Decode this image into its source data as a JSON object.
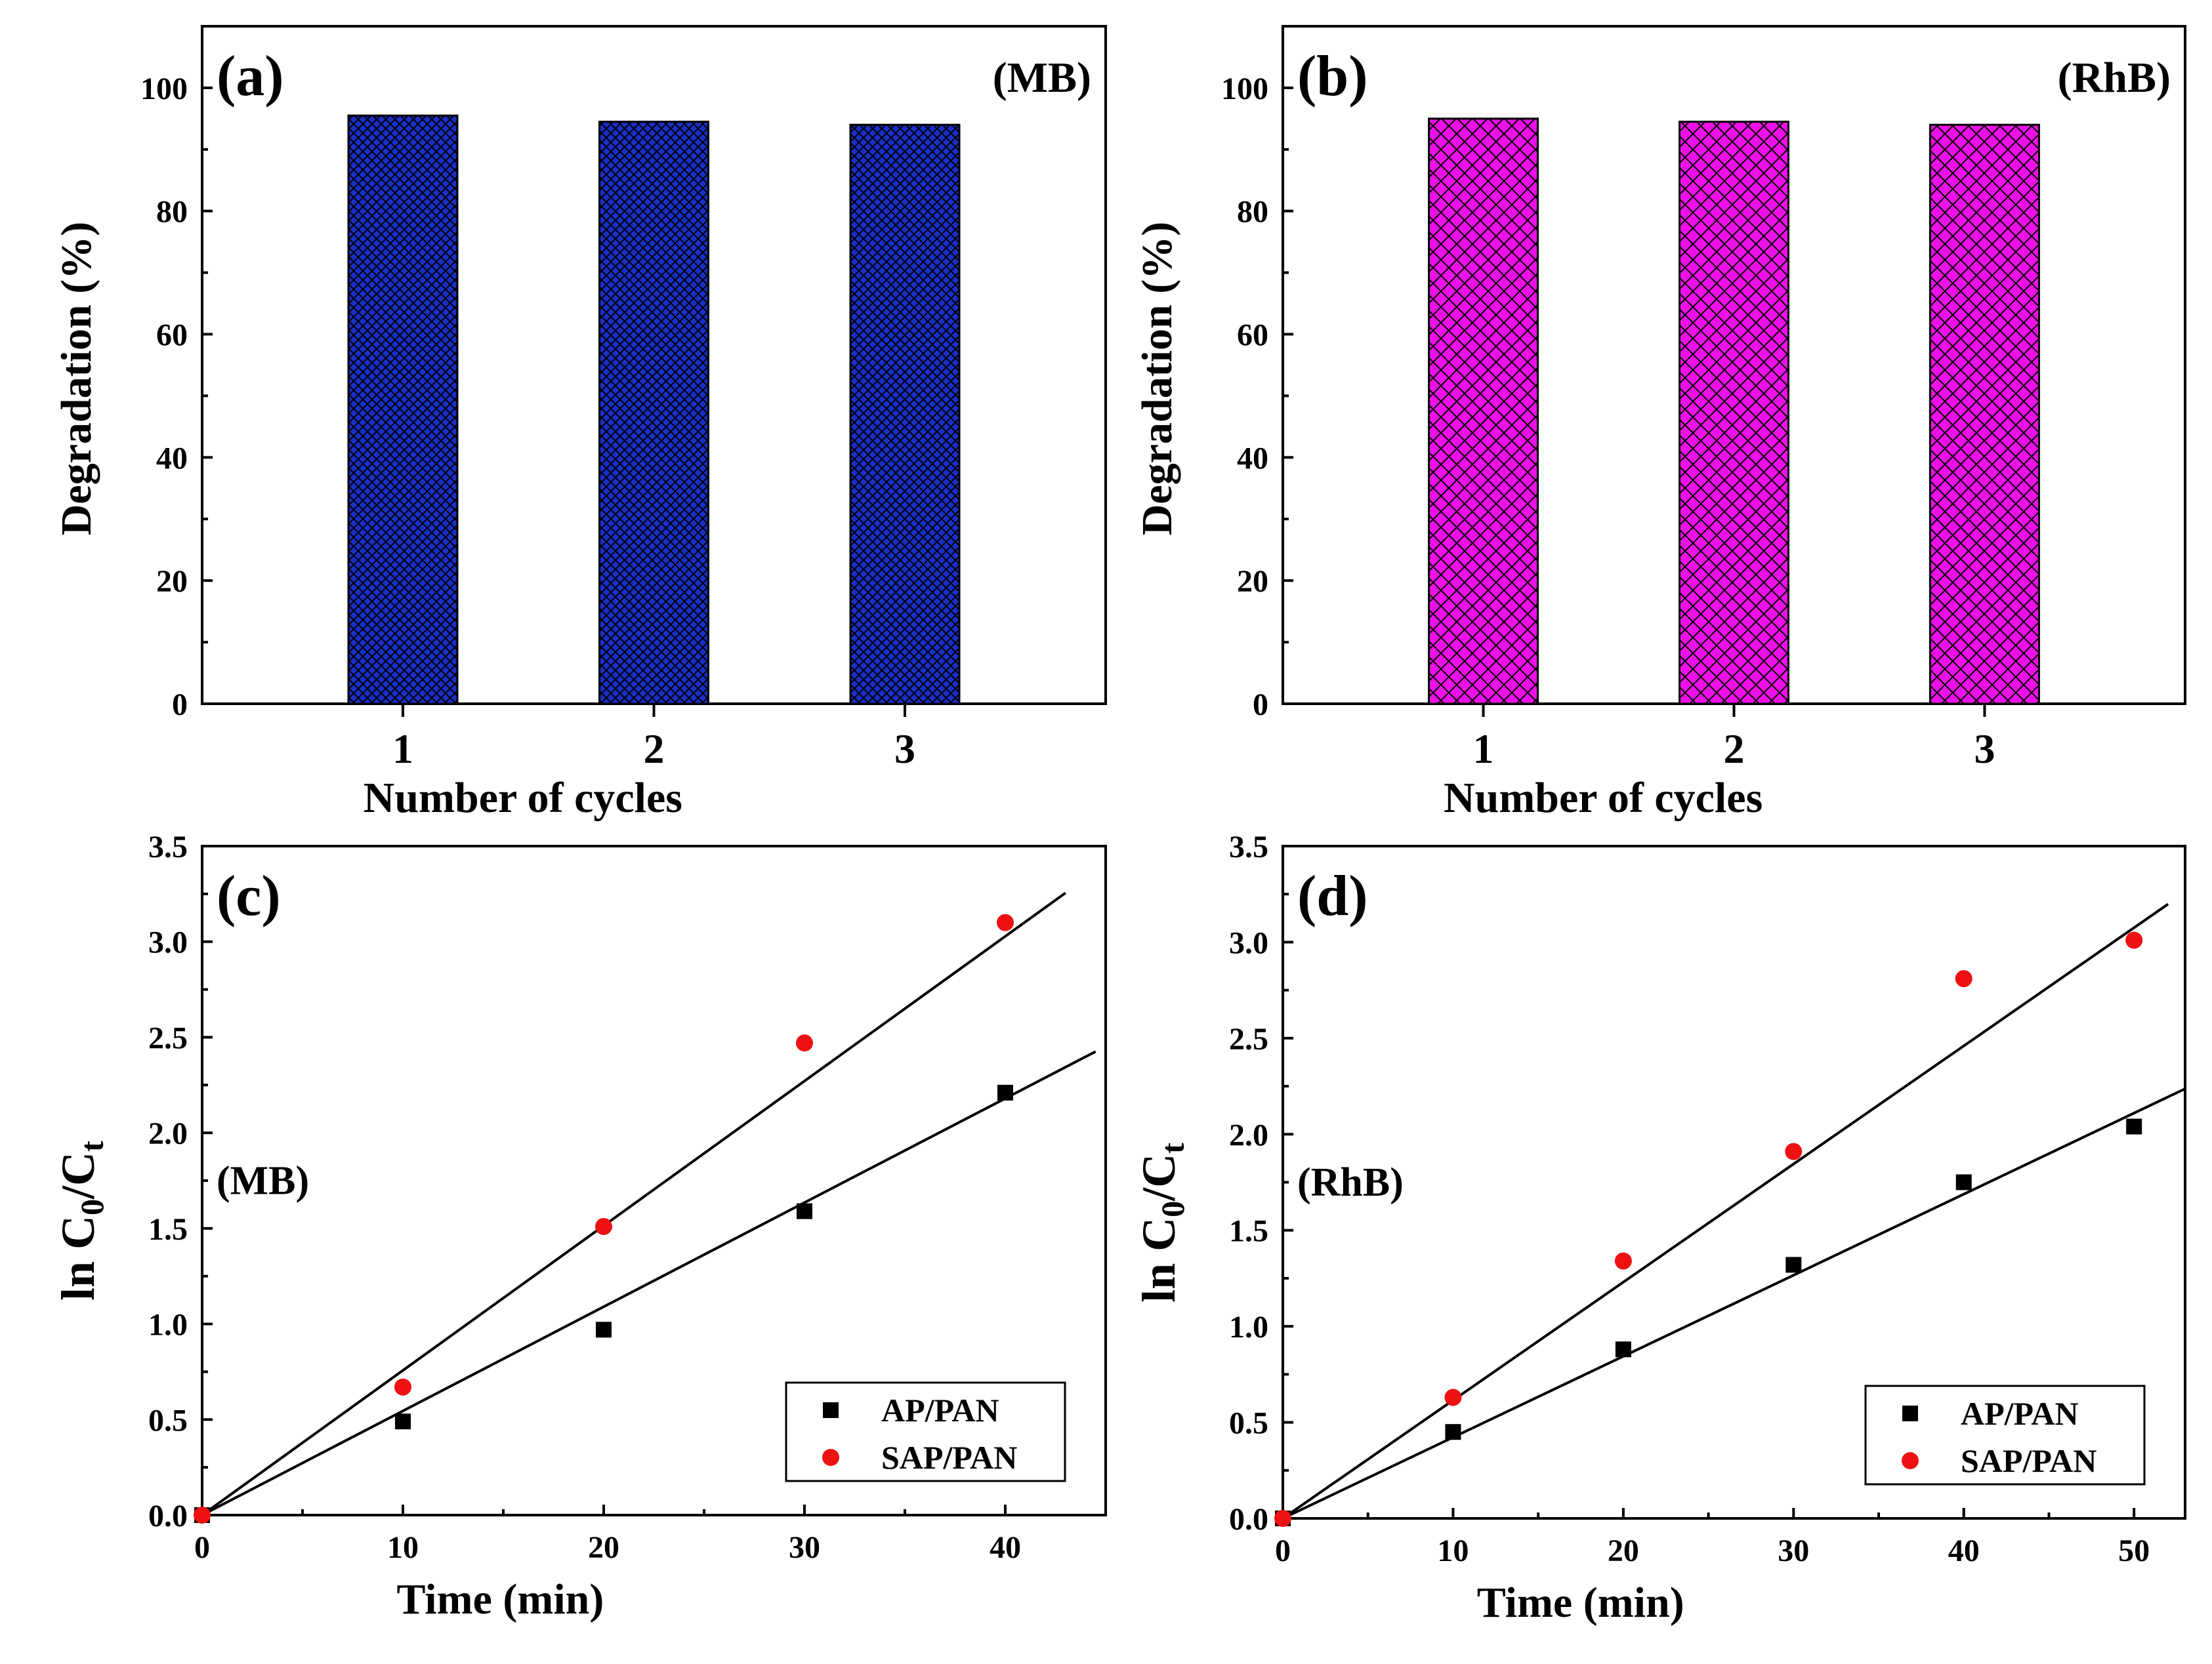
{
  "chart_data": [
    {
      "id": "a",
      "type": "bar",
      "panel_label": "(a)",
      "tag": "(MB)",
      "categories": [
        "1",
        "2",
        "3"
      ],
      "values": [
        95.5,
        94.5,
        94.0
      ],
      "xlabel": "Number of cycles",
      "ylabel": "Degradation (%)",
      "ylim": [
        0,
        110
      ],
      "yticks": [
        "0",
        "20",
        "40",
        "60",
        "80",
        "100"
      ],
      "bar_color": "#1a2ec8",
      "hatch": "grid"
    },
    {
      "id": "b",
      "type": "bar",
      "panel_label": "(b)",
      "tag": "(RhB)",
      "categories": [
        "1",
        "2",
        "3"
      ],
      "values": [
        95.0,
        94.5,
        94.0
      ],
      "xlabel": "Number of cycles",
      "ylabel": "Degradation (%)",
      "ylim": [
        0,
        110
      ],
      "yticks": [
        "0",
        "20",
        "40",
        "60",
        "80",
        "100"
      ],
      "bar_color": "#ee10e8",
      "hatch": "crosshatch"
    },
    {
      "id": "c",
      "type": "scatter",
      "panel_label": "(c)",
      "tag": "(MB)",
      "xlabel": "Time (min)",
      "ylabel_main": "ln C",
      "ylabel_sub1": "0",
      "ylabel_mid": "/C",
      "ylabel_sub2": "t",
      "xlim": [
        0,
        45
      ],
      "ylim": [
        0,
        3.5
      ],
      "xticks": [
        "0",
        "10",
        "20",
        "30",
        "40"
      ],
      "yticks": [
        "0.0",
        "0.5",
        "1.0",
        "1.5",
        "2.0",
        "2.5",
        "3.0",
        "3.5"
      ],
      "series": [
        {
          "name": "AP/PAN",
          "marker": "square",
          "color": "#000000",
          "x": [
            0,
            10,
            20,
            30,
            40
          ],
          "y": [
            0,
            0.49,
            0.97,
            1.59,
            2.21
          ],
          "fit_slope": 0.0545,
          "fit_xmax": 44.5
        },
        {
          "name": "SAP/PAN",
          "marker": "circle",
          "color": "#ee1111",
          "x": [
            0,
            10,
            20,
            30,
            40
          ],
          "y": [
            0,
            0.67,
            1.51,
            2.47,
            3.1
          ],
          "fit_slope": 0.0757,
          "fit_xmax": 43
        }
      ]
    },
    {
      "id": "d",
      "type": "scatter",
      "panel_label": "(d)",
      "tag": "(RhB)",
      "xlabel": "Time (min)",
      "ylabel_main": "ln C",
      "ylabel_sub1": "0",
      "ylabel_mid": "/C",
      "ylabel_sub2": "t",
      "xlim": [
        0,
        53
      ],
      "ylim": [
        0,
        3.5
      ],
      "xticks": [
        "0",
        "10",
        "20",
        "30",
        "40",
        "50"
      ],
      "yticks": [
        "0.0",
        "0.5",
        "1.0",
        "1.5",
        "2.0",
        "2.5",
        "3.0",
        "3.5"
      ],
      "series": [
        {
          "name": "AP/PAN",
          "marker": "square",
          "color": "#000000",
          "x": [
            0,
            10,
            20,
            30,
            40,
            50
          ],
          "y": [
            0,
            0.45,
            0.88,
            1.32,
            1.75,
            2.04
          ],
          "fit_slope": 0.0422,
          "fit_xmax": 53
        },
        {
          "name": "SAP/PAN",
          "marker": "circle",
          "color": "#ee1111",
          "x": [
            0,
            10,
            20,
            30,
            40,
            50
          ],
          "y": [
            0,
            0.63,
            1.34,
            1.91,
            2.81,
            3.01
          ],
          "fit_slope": 0.0615,
          "fit_xmax": 52
        }
      ]
    }
  ]
}
